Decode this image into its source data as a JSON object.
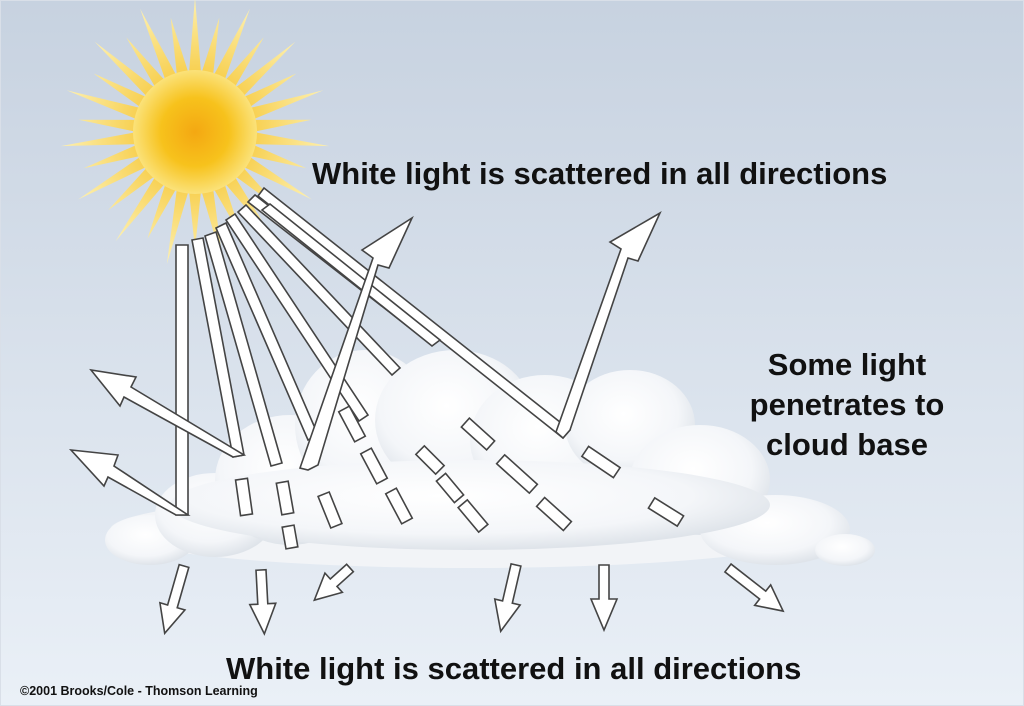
{
  "labels": {
    "top": "White light is scattered in all directions",
    "side": "Some light penetrates to cloud base",
    "bottom": "White light is scattered in all directions",
    "copyright": "©2001 Brooks/Cole - Thomson Learning"
  },
  "icons": {
    "sun": "sun-icon",
    "cloud": "cloud-icon"
  },
  "colors": {
    "sky_top": "#c7d2e0",
    "sky_bottom": "#eaf0f7",
    "sun_core": "#f4a812",
    "sun_ray": "#f8d24a",
    "cloud": "#ffffff",
    "arrow_fill": "#ffffff",
    "arrow_stroke": "#444444",
    "text": "#111111"
  }
}
